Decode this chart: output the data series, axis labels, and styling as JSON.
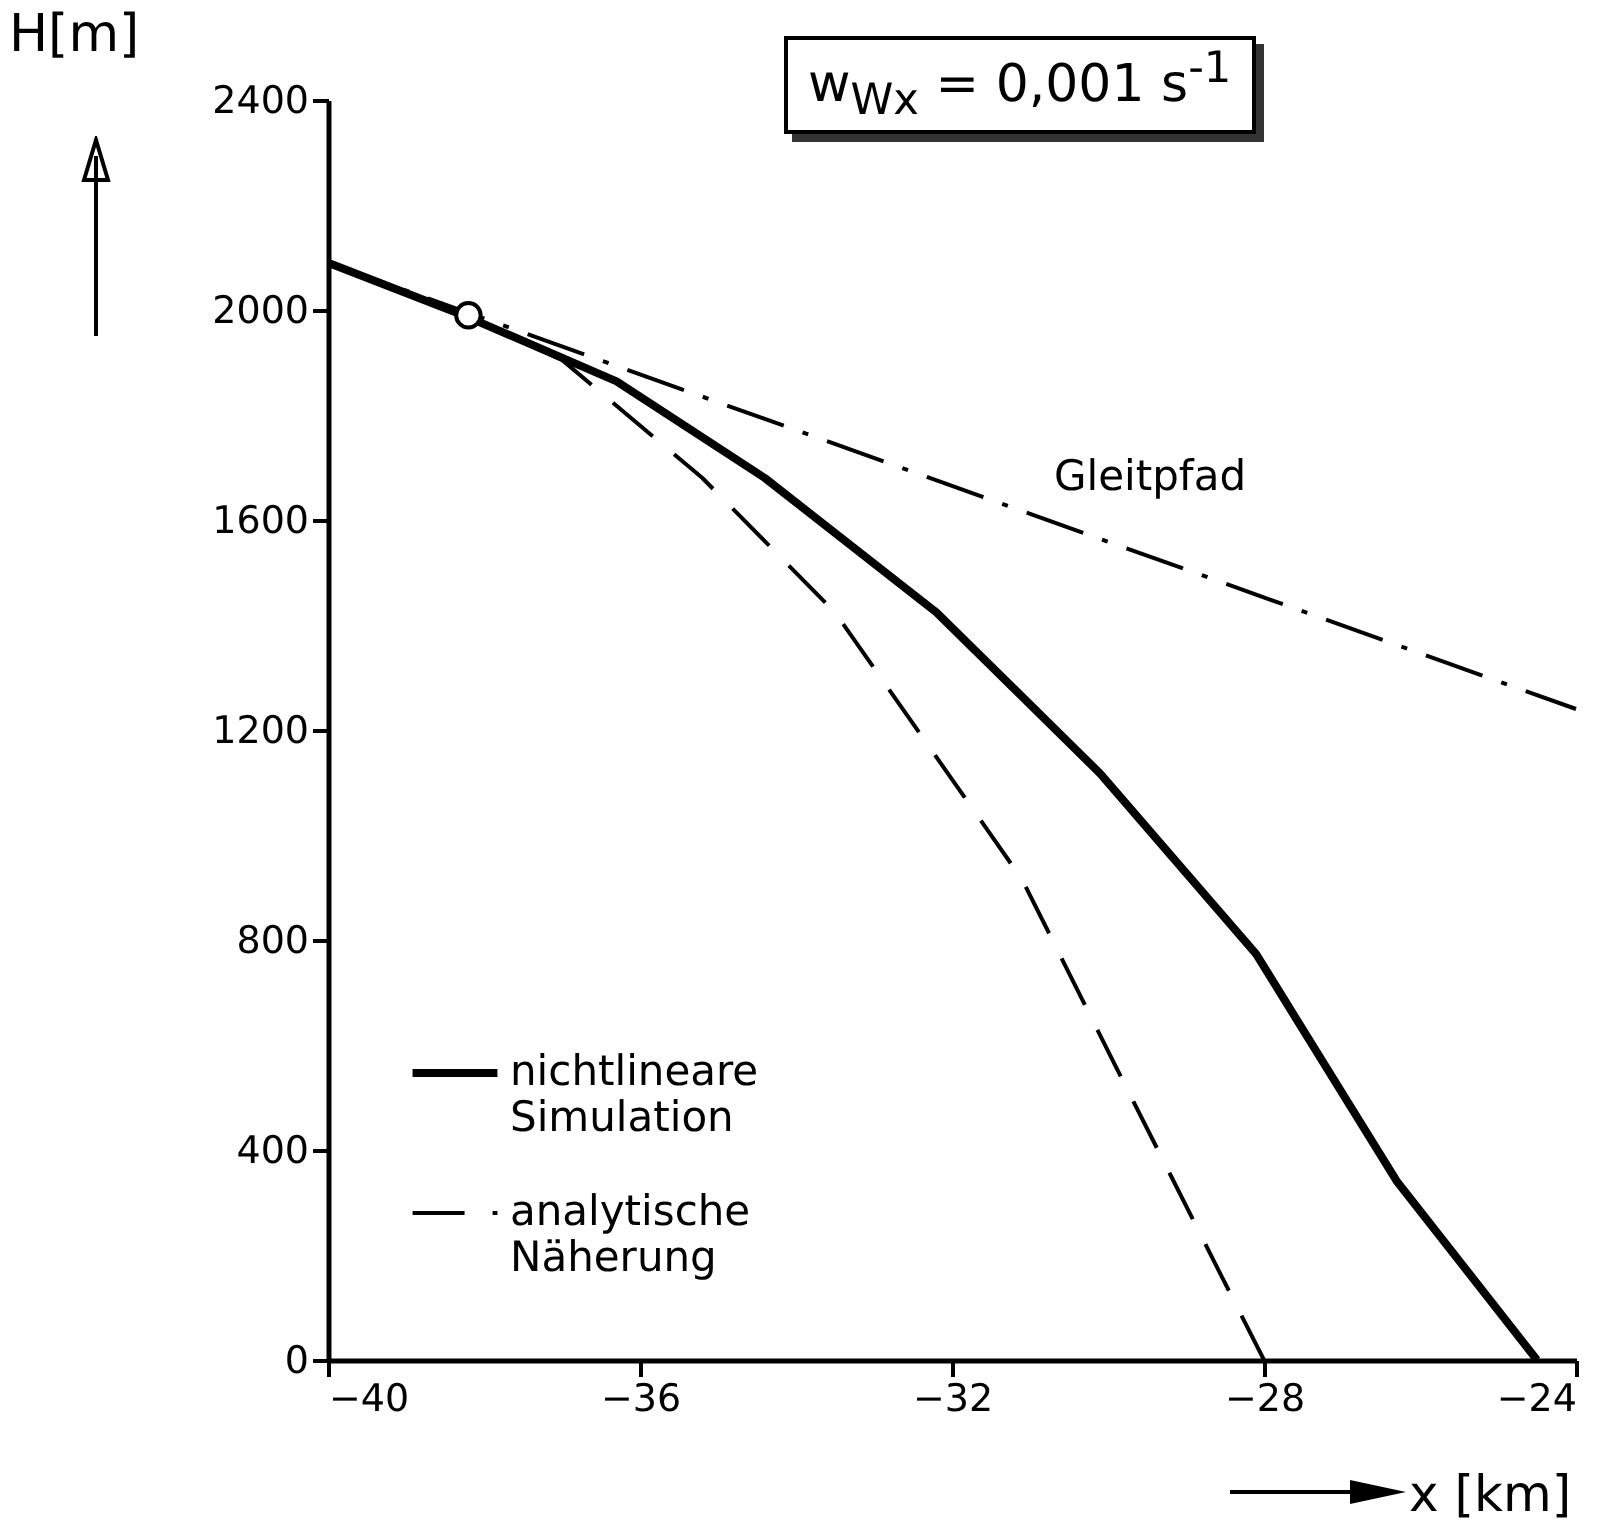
{
  "chart_data": {
    "type": "line",
    "xlabel": "x [km]",
    "ylabel": "H[m]",
    "xlim": [
      -40,
      -24
    ],
    "xticks": [
      -40,
      -36,
      -32,
      -28,
      -24
    ],
    "ylim": [
      0,
      2400
    ],
    "yticks": [
      0,
      400,
      800,
      1200,
      1600,
      2000,
      2400
    ],
    "grid": false,
    "legend": "bottom left",
    "annotations": [
      "w$_{Wx}$ = 0,001 s$^{-1}$",
      "Gleitpfad"
    ],
    "series": [
      {
        "name": "nichtlineare Simulation",
        "color": "#000000",
        "line_style": "solid",
        "x": [
          -40,
          -38.2,
          -36.3,
          -34.4,
          -32.2,
          -30.1,
          -28.1,
          -26.3,
          -24.5
        ],
        "values": [
          2090,
          1986,
          1864,
          1680,
          1424,
          1117,
          773,
          341,
          0
        ]
      },
      {
        "name": "analytische Näherung",
        "color": "#000000",
        "line_style": "dashed",
        "x": [
          -40,
          -38.2,
          -37,
          -35.2,
          -33.5,
          -32,
          -31.1,
          -29.9,
          -28.6,
          -28
        ],
        "values": [
          2090,
          1986,
          1905,
          1680,
          1424,
          1106,
          915,
          559,
          176,
          0
        ]
      },
      {
        "color": "#000000",
        "line_style": "dashdot",
        "x": [
          -40,
          -24
        ],
        "values": [
          2090,
          1240
        ]
      },
      {
        "type": "scatter",
        "marker": "circle",
        "color": "#000000",
        "x": [
          -38.2
        ],
        "values": [
          1990
        ]
      }
    ]
  }
}
